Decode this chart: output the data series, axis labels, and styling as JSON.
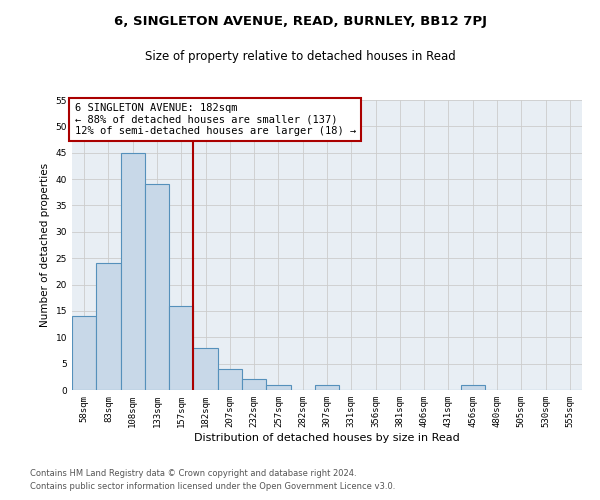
{
  "title1": "6, SINGLETON AVENUE, READ, BURNLEY, BB12 7PJ",
  "title2": "Size of property relative to detached houses in Read",
  "xlabel": "Distribution of detached houses by size in Read",
  "ylabel": "Number of detached properties",
  "categories": [
    "58sqm",
    "83sqm",
    "108sqm",
    "133sqm",
    "157sqm",
    "182sqm",
    "207sqm",
    "232sqm",
    "257sqm",
    "282sqm",
    "307sqm",
    "331sqm",
    "356sqm",
    "381sqm",
    "406sqm",
    "431sqm",
    "456sqm",
    "480sqm",
    "505sqm",
    "530sqm",
    "555sqm"
  ],
  "values": [
    14,
    24,
    45,
    39,
    16,
    8,
    4,
    2,
    1,
    0,
    1,
    0,
    0,
    0,
    0,
    0,
    1,
    0,
    0,
    0,
    0
  ],
  "bar_color": "#c8d8e8",
  "bar_edgecolor": "#5590bb",
  "vline_index": 5,
  "vline_color": "#aa0000",
  "annotation_lines": [
    "6 SINGLETON AVENUE: 182sqm",
    "← 88% of detached houses are smaller (137)",
    "12% of semi-detached houses are larger (18) →"
  ],
  "annotation_box_color": "#aa0000",
  "ylim": [
    0,
    55
  ],
  "yticks": [
    0,
    5,
    10,
    15,
    20,
    25,
    30,
    35,
    40,
    45,
    50,
    55
  ],
  "grid_color": "#cccccc",
  "bg_color": "#e8eef4",
  "footer1": "Contains HM Land Registry data © Crown copyright and database right 2024.",
  "footer2": "Contains public sector information licensed under the Open Government Licence v3.0.",
  "title1_fontsize": 9.5,
  "title2_fontsize": 8.5,
  "xlabel_fontsize": 8,
  "ylabel_fontsize": 7.5,
  "tick_fontsize": 6.5,
  "annotation_fontsize": 7.5,
  "footer_fontsize": 6
}
